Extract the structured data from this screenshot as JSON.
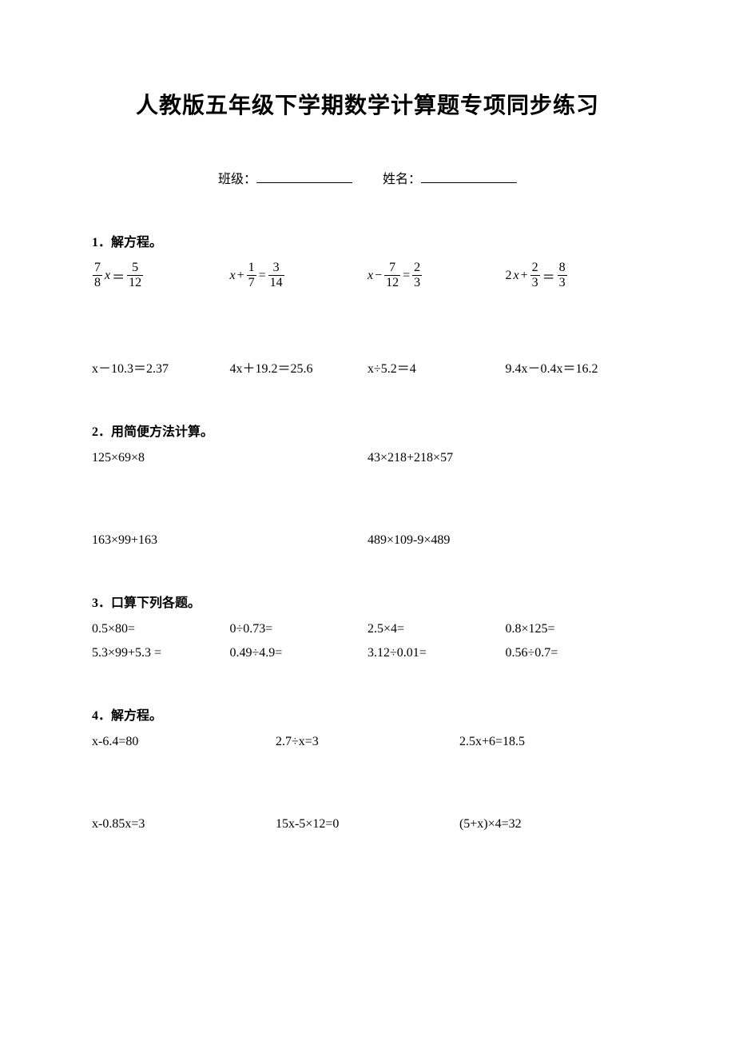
{
  "title": "人教版五年级下学期数学计算题专项同步练习",
  "info": {
    "class_label": "班级：",
    "name_label": "姓名："
  },
  "sections": {
    "s1": {
      "title": "1．解方程。",
      "row1": [
        {
          "type": "frac-eq",
          "lhs_num": "7",
          "lhs_den": "8",
          "lhs_var": "x",
          "op": "＝",
          "rhs_num": "5",
          "rhs_den": "12"
        },
        {
          "type": "var-frac-eq",
          "var": "x",
          "op1": "+",
          "f1_num": "1",
          "f1_den": "7",
          "eq": "=",
          "f2_num": "3",
          "f2_den": "14"
        },
        {
          "type": "var-frac-eq",
          "var": "x",
          "op1": "−",
          "f1_num": "7",
          "f1_den": "12",
          "eq": "=",
          "f2_num": "2",
          "f2_den": "3"
        },
        {
          "type": "coef-var-frac",
          "coef": "2",
          "var": "x",
          "op1": "+",
          "f1_num": "2",
          "f1_den": "3",
          "eq": "＝",
          "f2_num": "8",
          "f2_den": "3"
        }
      ],
      "row2": [
        "x－10.3＝2.37",
        "4x＋19.2＝25.6",
        "x÷5.2＝4",
        "9.4x－0.4x＝16.2"
      ]
    },
    "s2": {
      "title": "2．用简便方法计算。",
      "rows": [
        [
          "125×69×8",
          "43×218+218×57"
        ],
        [
          "163×99+163",
          "489×109-9×489"
        ]
      ]
    },
    "s3": {
      "title": "3．口算下列各题。",
      "rows": [
        [
          "0.5×80=",
          "0÷0.73=",
          "2.5×4=",
          "0.8×125="
        ],
        [
          "5.3×99+5.3 =",
          "0.49÷4.9=",
          "3.12÷0.01=",
          "0.56÷0.7="
        ]
      ]
    },
    "s4": {
      "title": "4．解方程。",
      "rows": [
        [
          "x-6.4=80",
          "2.7÷x=3",
          "2.5x+6=18.5"
        ],
        [
          "x-0.85x=3",
          "15x-5×12=0",
          "(5+x)×4=32"
        ]
      ]
    }
  }
}
